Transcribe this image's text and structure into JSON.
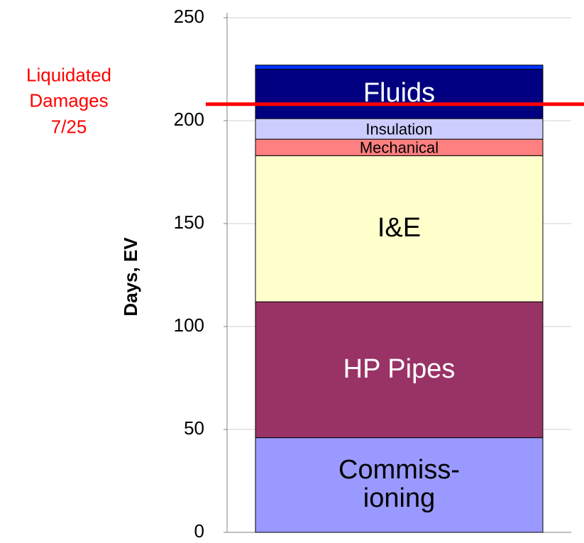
{
  "chart_data": {
    "type": "bar",
    "stacked": true,
    "y_label": "Days, EV",
    "categories": [
      null
    ],
    "series": [
      {
        "name": "Commiss-\nioning",
        "color": "#9999ff",
        "label_color": "#000000",
        "values": [
          46
        ]
      },
      {
        "name": "HP Pipes",
        "color": "#993366",
        "label_color": "#ffffff",
        "values": [
          66
        ]
      },
      {
        "name": "I&E",
        "color": "#ffffcc",
        "label_color": "#000000",
        "values": [
          71
        ]
      },
      {
        "name": "Mechanical",
        "color": "#ff8080",
        "label_color": "#000000",
        "values": [
          8
        ]
      },
      {
        "name": "Insulation",
        "color": "#ccccff",
        "label_color": "#000000",
        "values": [
          10
        ]
      },
      {
        "name": "Fluids",
        "color": "#000080",
        "label_color": "#ffffff",
        "values": [
          24
        ]
      },
      {
        "name": null,
        "color": "#0033ff",
        "label_color": null,
        "values": [
          2
        ]
      }
    ],
    "ylim": [
      0,
      250
    ],
    "yticks": [
      0,
      50,
      100,
      150,
      200,
      250
    ],
    "grid": true,
    "annotations": [
      {
        "text": "Liquidated\nDamages\n7/25",
        "value": 208,
        "color": "#ff0000"
      }
    ]
  }
}
